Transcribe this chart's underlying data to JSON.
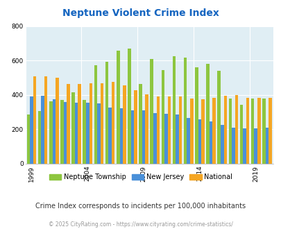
{
  "title": "Neptune Violent Crime Index",
  "years": [
    1999,
    2000,
    2001,
    2002,
    2003,
    2004,
    2005,
    2006,
    2007,
    2008,
    2009,
    2010,
    2011,
    2012,
    2013,
    2014,
    2015,
    2016,
    2017,
    2018,
    2019,
    2020
  ],
  "neptune": [
    285,
    305,
    365,
    370,
    415,
    370,
    575,
    595,
    660,
    670,
    465,
    608,
    545,
    625,
    620,
    560,
    580,
    540,
    380,
    345,
    380,
    380
  ],
  "new_jersey": [
    390,
    395,
    375,
    360,
    355,
    355,
    350,
    328,
    323,
    310,
    310,
    295,
    290,
    285,
    265,
    260,
    248,
    225,
    210,
    207,
    207,
    210
  ],
  "national": [
    510,
    510,
    500,
    465,
    465,
    470,
    470,
    475,
    455,
    430,
    405,
    390,
    390,
    390,
    380,
    375,
    385,
    395,
    400,
    385,
    385,
    385
  ],
  "neptune_color": "#8DC63F",
  "nj_color": "#4A90D9",
  "national_color": "#F5A623",
  "bg_color": "#E0EEF4",
  "title_color": "#1565C0",
  "ylabel_max": 800,
  "yticks": [
    0,
    200,
    400,
    600,
    800
  ],
  "xtick_years": [
    1999,
    2004,
    2009,
    2014,
    2019
  ],
  "subtitle": "Crime Index corresponds to incidents per 100,000 inhabitants",
  "footer": "© 2025 CityRating.com - https://www.cityrating.com/crime-statistics/",
  "legend_labels": [
    "Neptune Township",
    "New Jersey",
    "National"
  ]
}
